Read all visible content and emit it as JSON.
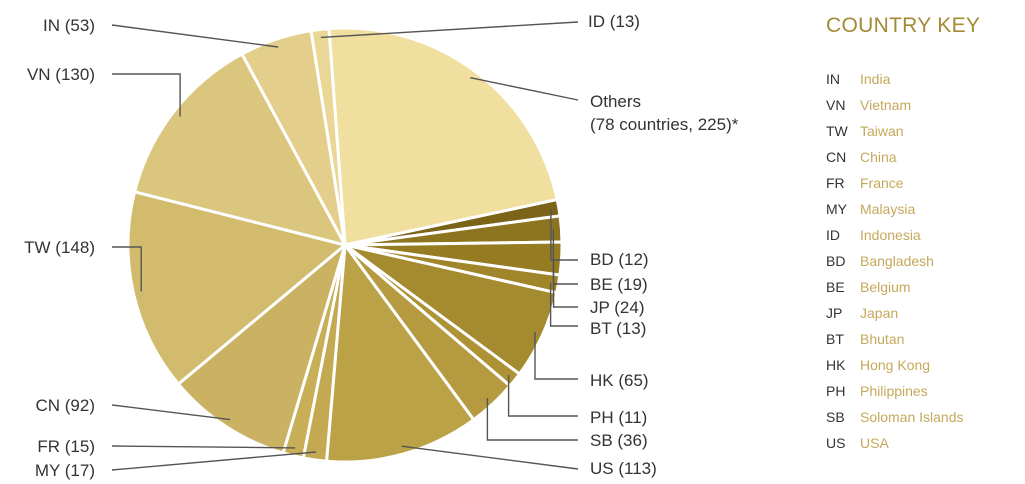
{
  "chart_data": {
    "type": "pie",
    "slices": [
      {
        "label": "Others (78 countries, 225)*",
        "code": "Others",
        "value": 225,
        "color": "#f1df9f"
      },
      {
        "label": "BD (12)",
        "code": "BD",
        "value": 12,
        "color": "#7b6418"
      },
      {
        "label": "BE (19)",
        "code": "BE",
        "value": 19,
        "color": "#8c7420"
      },
      {
        "label": "JP (24)",
        "code": "JP",
        "value": 24,
        "color": "#957b22"
      },
      {
        "label": "BT (13)",
        "code": "BT",
        "value": 13,
        "color": "#a0852a"
      },
      {
        "label": "HK (65)",
        "code": "HK",
        "value": 65,
        "color": "#a58b2f"
      },
      {
        "label": "PH (11)",
        "code": "PH",
        "value": 11,
        "color": "#ad9236"
      },
      {
        "label": "SB (36)",
        "code": "SB",
        "value": 36,
        "color": "#b59a40"
      },
      {
        "label": "US (113)",
        "code": "US",
        "value": 113,
        "color": "#bca246"
      },
      {
        "label": "MY (17)",
        "code": "MY",
        "value": 17,
        "color": "#c3aa52"
      },
      {
        "label": "FR (15)",
        "code": "FR",
        "value": 15,
        "color": "#c7ae57"
      },
      {
        "label": "CN (92)",
        "code": "CN",
        "value": 92,
        "color": "#cbb262"
      },
      {
        "label": "TW (148)",
        "code": "TW",
        "value": 148,
        "color": "#d3bb6e"
      },
      {
        "label": "VN (130)",
        "code": "VN",
        "value": 130,
        "color": "#dbc67d"
      },
      {
        "label": "IN (53)",
        "code": "IN",
        "value": 53,
        "color": "#e3cf8b"
      },
      {
        "label": "ID (13)",
        "code": "ID",
        "value": 13,
        "color": "#ead795"
      }
    ],
    "legend_placement": "right"
  },
  "key": {
    "title": "COUNTRY KEY",
    "entries": [
      {
        "code": "IN",
        "name": "India"
      },
      {
        "code": "VN",
        "name": "Vietnam"
      },
      {
        "code": "TW",
        "name": "Taiwan"
      },
      {
        "code": "CN",
        "name": "China"
      },
      {
        "code": "FR",
        "name": "France"
      },
      {
        "code": "MY",
        "name": "Malaysia"
      },
      {
        "code": "ID",
        "name": "Indonesia"
      },
      {
        "code": "BD",
        "name": "Bangladesh"
      },
      {
        "code": "BE",
        "name": "Belgium"
      },
      {
        "code": "JP",
        "name": "Japan"
      },
      {
        "code": "BT",
        "name": "Bhutan"
      },
      {
        "code": "HK",
        "name": "Hong Kong"
      },
      {
        "code": "PH",
        "name": "Philippines"
      },
      {
        "code": "SB",
        "name": "Soloman Islands"
      },
      {
        "code": "US",
        "name": "USA"
      }
    ]
  }
}
